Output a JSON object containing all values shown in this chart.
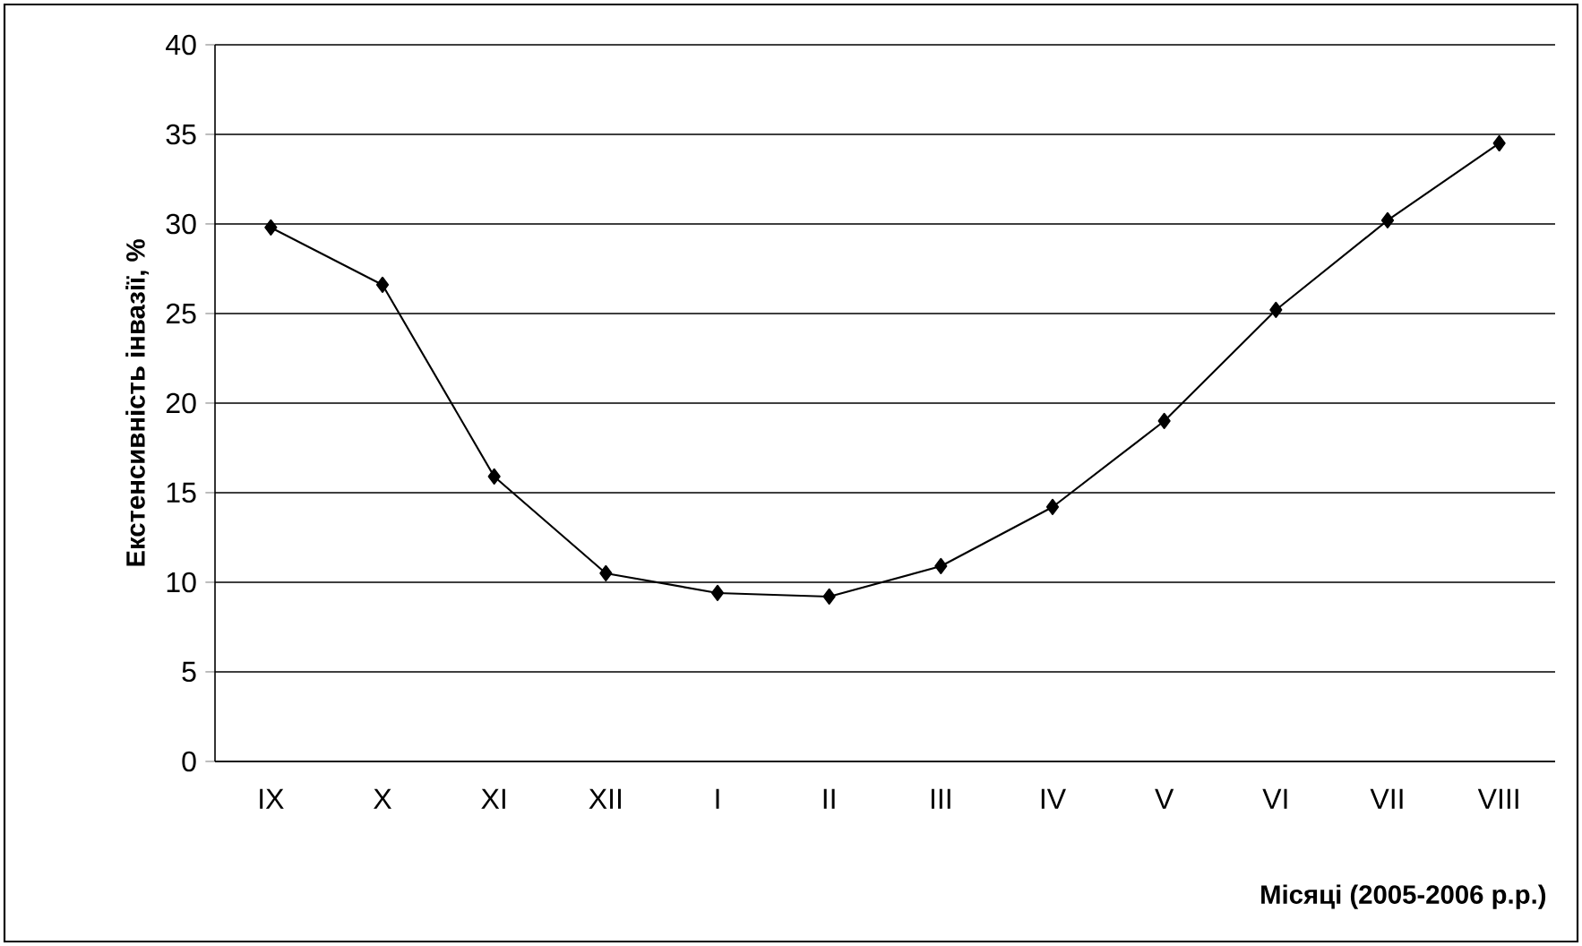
{
  "chart_data": {
    "type": "line",
    "xlabel": "Місяці (2005-2006 р.р.)",
    "ylabel": "Екстенсивність інвазії, %",
    "categories": [
      "IX",
      "X",
      "XI",
      "XII",
      "I",
      "II",
      "III",
      "IV",
      "V",
      "VI",
      "VII",
      "VIII"
    ],
    "values": [
      29.8,
      26.6,
      15.9,
      10.5,
      9.4,
      9.2,
      10.9,
      14.2,
      19.0,
      25.2,
      30.2,
      34.5
    ],
    "color": "#000000",
    "marker": "diamond",
    "line_style": "solid",
    "grid": "y",
    "ylim": [
      0,
      40
    ],
    "yticks": [
      0,
      5,
      10,
      15,
      20,
      25,
      30,
      35,
      40
    ]
  }
}
